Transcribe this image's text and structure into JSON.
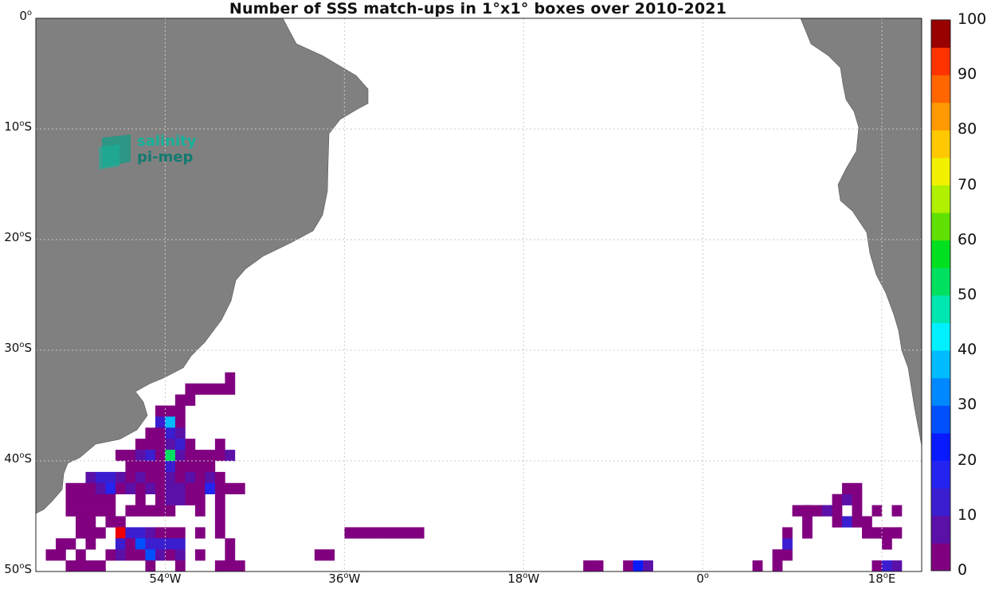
{
  "title": "Number of SSS match-ups in 1°x1° boxes over 2010-2021",
  "logo": {
    "line1": "salinity",
    "line2": "pi-mep"
  },
  "map": {
    "lon_range": [
      -67,
      22
    ],
    "lat_range": [
      -50,
      0
    ],
    "land_color": "#808080",
    "grid": "dotted"
  },
  "lat_ticks": [
    {
      "value": 0,
      "label": "0",
      "suffix": "o"
    },
    {
      "value": -10,
      "label": "10",
      "suffix": "oS"
    },
    {
      "value": -20,
      "label": "20",
      "suffix": "oS"
    },
    {
      "value": -30,
      "label": "30",
      "suffix": "oS"
    },
    {
      "value": -40,
      "label": "40",
      "suffix": "oS"
    },
    {
      "value": -50,
      "label": "50",
      "suffix": "oS"
    }
  ],
  "lon_ticks": [
    {
      "value": -54,
      "label": "54",
      "suffix": "oW"
    },
    {
      "value": -36,
      "label": "36",
      "suffix": "oW"
    },
    {
      "value": -18,
      "label": "18",
      "suffix": "oW"
    },
    {
      "value": 0,
      "label": "0",
      "suffix": "o"
    },
    {
      "value": 18,
      "label": "18",
      "suffix": "oE"
    }
  ],
  "colorbar": {
    "min": 0,
    "max": 100,
    "steps": 20,
    "tick_labels": [
      "0",
      "10",
      "20",
      "30",
      "40",
      "50",
      "60",
      "70",
      "80",
      "90",
      "100"
    ],
    "colors": [
      "#800080",
      "#5b10a8",
      "#3a1ed0",
      "#2424f0",
      "#0a1aff",
      "#0050ff",
      "#0088ff",
      "#00bbff",
      "#00f0ff",
      "#00e6b0",
      "#00e060",
      "#00e020",
      "#60e000",
      "#b0f000",
      "#f0f000",
      "#ffc800",
      "#ff9900",
      "#ff6600",
      "#ff3300",
      "#ee0000"
    ],
    "top_color": "#990000"
  },
  "chart_data": {
    "type": "heatmap",
    "title": "Number of SSS match-ups in 1°x1° boxes over 2010-2021",
    "colorbar_range": [
      0,
      100
    ],
    "cells_note": "each cell = [lon_left, lat_top, count]",
    "cells": [
      [
        -52,
        -33,
        2
      ],
      [
        -51,
        -33,
        2
      ],
      [
        -50,
        -33,
        2
      ],
      [
        -49,
        -33,
        2
      ],
      [
        -48,
        -33,
        2
      ],
      [
        -48,
        -32,
        2
      ],
      [
        -53,
        -34,
        2
      ],
      [
        -52,
        -34,
        2
      ],
      [
        -55,
        -35,
        2
      ],
      [
        -54,
        -35,
        2
      ],
      [
        -53,
        -35,
        2
      ],
      [
        -55,
        -36,
        10
      ],
      [
        -54,
        -36,
        35
      ],
      [
        -53,
        -36,
        2
      ],
      [
        -56,
        -37,
        2
      ],
      [
        -55,
        -37,
        2
      ],
      [
        -54,
        -37,
        12
      ],
      [
        -53,
        -37,
        8
      ],
      [
        -57,
        -38,
        2
      ],
      [
        -56,
        -38,
        2
      ],
      [
        -55,
        -38,
        2
      ],
      [
        -54,
        -38,
        8
      ],
      [
        -53,
        -38,
        12
      ],
      [
        -52,
        -38,
        2
      ],
      [
        -49,
        -38,
        2
      ],
      [
        -59,
        -39,
        2
      ],
      [
        -58,
        -39,
        2
      ],
      [
        -57,
        -39,
        8
      ],
      [
        -56,
        -39,
        12
      ],
      [
        -55,
        -39,
        2
      ],
      [
        -54,
        -39,
        50
      ],
      [
        -53,
        -39,
        8
      ],
      [
        -52,
        -39,
        2
      ],
      [
        -51,
        -39,
        2
      ],
      [
        -50,
        -39,
        2
      ],
      [
        -49,
        -39,
        2
      ],
      [
        -48,
        -39,
        8
      ],
      [
        -58,
        -40,
        2
      ],
      [
        -57,
        -40,
        2
      ],
      [
        -56,
        -40,
        2
      ],
      [
        -55,
        -40,
        2
      ],
      [
        -54,
        -40,
        12
      ],
      [
        -53,
        -40,
        2
      ],
      [
        -52,
        -40,
        2
      ],
      [
        -51,
        -40,
        2
      ],
      [
        -50,
        -40,
        2
      ],
      [
        -62,
        -41,
        8
      ],
      [
        -61,
        -41,
        12
      ],
      [
        -60,
        -41,
        12
      ],
      [
        -59,
        -41,
        8
      ],
      [
        -58,
        -41,
        2
      ],
      [
        -57,
        -41,
        8
      ],
      [
        -56,
        -41,
        2
      ],
      [
        -55,
        -41,
        2
      ],
      [
        -54,
        -41,
        8
      ],
      [
        -53,
        -41,
        2
      ],
      [
        -52,
        -41,
        8
      ],
      [
        -51,
        -41,
        2
      ],
      [
        -50,
        -41,
        8
      ],
      [
        -49,
        -41,
        2
      ],
      [
        -64,
        -42,
        2
      ],
      [
        -63,
        -42,
        2
      ],
      [
        -62,
        -42,
        2
      ],
      [
        -61,
        -42,
        8
      ],
      [
        -60,
        -42,
        15
      ],
      [
        -59,
        -42,
        2
      ],
      [
        -58,
        -42,
        8
      ],
      [
        -57,
        -42,
        2
      ],
      [
        -56,
        -42,
        8
      ],
      [
        -55,
        -42,
        2
      ],
      [
        -54,
        -42,
        8
      ],
      [
        -53,
        -42,
        8
      ],
      [
        -52,
        -42,
        2
      ],
      [
        -51,
        -42,
        2
      ],
      [
        -50,
        -42,
        15
      ],
      [
        -49,
        -42,
        2
      ],
      [
        -48,
        -42,
        2
      ],
      [
        -47,
        -42,
        2
      ],
      [
        -64,
        -43,
        2
      ],
      [
        -63,
        -43,
        2
      ],
      [
        -62,
        -43,
        2
      ],
      [
        -61,
        -43,
        2
      ],
      [
        -60,
        -43,
        2
      ],
      [
        -57,
        -43,
        2
      ],
      [
        -55,
        -43,
        2
      ],
      [
        -54,
        -43,
        8
      ],
      [
        -53,
        -43,
        8
      ],
      [
        -52,
        -43,
        2
      ],
      [
        -51,
        -43,
        2
      ],
      [
        -49,
        -43,
        2
      ],
      [
        -64,
        -44,
        2
      ],
      [
        -63,
        -44,
        2
      ],
      [
        -62,
        -44,
        2
      ],
      [
        -61,
        -44,
        2
      ],
      [
        -60,
        -44,
        2
      ],
      [
        -58,
        -44,
        2
      ],
      [
        -57,
        -44,
        2
      ],
      [
        -56,
        -44,
        2
      ],
      [
        -55,
        -44,
        2
      ],
      [
        -54,
        -44,
        2
      ],
      [
        -51,
        -44,
        2
      ],
      [
        -49,
        -44,
        2
      ],
      [
        -63,
        -45,
        2
      ],
      [
        -62,
        -45,
        2
      ],
      [
        -60,
        -45,
        2
      ],
      [
        -59,
        -45,
        2
      ],
      [
        -49,
        -45,
        2
      ],
      [
        -63,
        -46,
        2
      ],
      [
        -62,
        -46,
        2
      ],
      [
        -61,
        -46,
        2
      ],
      [
        -59,
        -46,
        95
      ],
      [
        -58,
        -46,
        12
      ],
      [
        -57,
        -46,
        12
      ],
      [
        -56,
        -46,
        8
      ],
      [
        -55,
        -46,
        2
      ],
      [
        -54,
        -46,
        2
      ],
      [
        -53,
        -46,
        2
      ],
      [
        -51,
        -46,
        2
      ],
      [
        -49,
        -46,
        2
      ],
      [
        -36,
        -46,
        2
      ],
      [
        -35,
        -46,
        2
      ],
      [
        -34,
        -46,
        2
      ],
      [
        -33,
        -46,
        2
      ],
      [
        -32,
        -46,
        2
      ],
      [
        -31,
        -46,
        2
      ],
      [
        -30,
        -46,
        2
      ],
      [
        -29,
        -46,
        2
      ],
      [
        -65,
        -47,
        2
      ],
      [
        -64,
        -47,
        2
      ],
      [
        -62,
        -47,
        2
      ],
      [
        -59,
        -47,
        12
      ],
      [
        -58,
        -47,
        2
      ],
      [
        -57,
        -47,
        25
      ],
      [
        -56,
        -47,
        12
      ],
      [
        -55,
        -47,
        12
      ],
      [
        -54,
        -47,
        12
      ],
      [
        -53,
        -47,
        12
      ],
      [
        -48,
        -47,
        2
      ],
      [
        -66,
        -48,
        2
      ],
      [
        -65,
        -48,
        2
      ],
      [
        -63,
        -48,
        2
      ],
      [
        -60,
        -48,
        2
      ],
      [
        -59,
        -48,
        8
      ],
      [
        -58,
        -48,
        2
      ],
      [
        -57,
        -48,
        2
      ],
      [
        -56,
        -48,
        25
      ],
      [
        -55,
        -48,
        8
      ],
      [
        -54,
        -48,
        2
      ],
      [
        -53,
        -48,
        8
      ],
      [
        -51,
        -48,
        2
      ],
      [
        -48,
        -48,
        2
      ],
      [
        -39,
        -48,
        2
      ],
      [
        -38,
        -48,
        2
      ],
      [
        -64,
        -49,
        2
      ],
      [
        -63,
        -49,
        2
      ],
      [
        -62,
        -49,
        2
      ],
      [
        -61,
        -49,
        2
      ],
      [
        -56,
        -49,
        2
      ],
      [
        -53,
        -49,
        2
      ],
      [
        -49,
        -49,
        2
      ],
      [
        -48,
        -49,
        2
      ],
      [
        -47,
        -49,
        2
      ],
      [
        -12,
        -49,
        2
      ],
      [
        -11,
        -49,
        2
      ],
      [
        -8,
        -49,
        2
      ],
      [
        -7,
        -49,
        20
      ],
      [
        -6,
        -49,
        8
      ],
      [
        -6,
        -50,
        2
      ],
      [
        5,
        -49,
        2
      ],
      [
        7,
        -49,
        2
      ],
      [
        7,
        -48,
        2
      ],
      [
        8,
        -48,
        2
      ],
      [
        8,
        -47,
        12
      ],
      [
        8,
        -46,
        2
      ],
      [
        10,
        -46,
        2
      ],
      [
        10,
        -45,
        2
      ],
      [
        10,
        -44,
        2
      ],
      [
        9,
        -44,
        2
      ],
      [
        10,
        -44,
        2
      ],
      [
        11,
        -44,
        2
      ],
      [
        12,
        -44,
        8
      ],
      [
        13,
        -44,
        2
      ],
      [
        13,
        -43,
        2
      ],
      [
        14,
        -43,
        8
      ],
      [
        15,
        -43,
        2
      ],
      [
        14,
        -42,
        2
      ],
      [
        15,
        -42,
        2
      ],
      [
        13,
        -45,
        2
      ],
      [
        14,
        -45,
        12
      ],
      [
        15,
        -45,
        2
      ],
      [
        16,
        -45,
        2
      ],
      [
        16,
        -46,
        2
      ],
      [
        17,
        -46,
        2
      ],
      [
        18,
        -46,
        2
      ],
      [
        19,
        -46,
        2
      ],
      [
        15,
        -44,
        2
      ],
      [
        17,
        -44,
        2
      ],
      [
        19,
        -44,
        2
      ],
      [
        18,
        -47,
        2
      ],
      [
        17,
        -49,
        2
      ],
      [
        18,
        -49,
        12
      ],
      [
        19,
        -49,
        8
      ],
      [
        18,
        -50,
        2
      ]
    ]
  }
}
